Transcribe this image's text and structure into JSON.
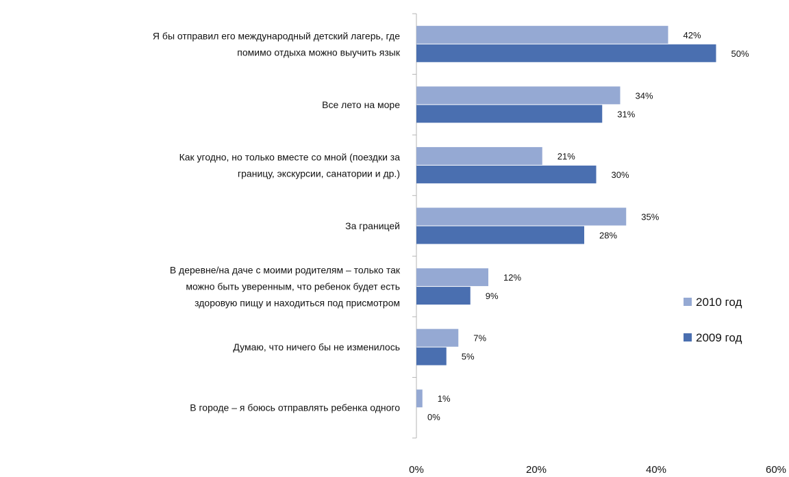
{
  "chart_data": {
    "type": "bar",
    "orientation": "horizontal",
    "categories": [
      [
        "Я бы отправил его международный детский лагерь, где",
        "помимо отдыха можно выучить язык"
      ],
      [
        "Все лето на море"
      ],
      [
        "Как угодно, но только вместе со мной (поездки за",
        "границу, экскурсии, санатории и др.)"
      ],
      [
        "За границей"
      ],
      [
        "В деревне/на даче с моими родителям – только так",
        "можно быть уверенным, что ребенок будет есть",
        "здоровую пищу и находиться под присмотром"
      ],
      [
        "Думаю, что ничего бы не изменилось"
      ],
      [
        "В городе – я боюсь отправлять ребенка одного"
      ]
    ],
    "series": [
      {
        "name": "2010 год",
        "color": "#95a9d3",
        "values": [
          42,
          34,
          21,
          35,
          12,
          7,
          1
        ],
        "labels": [
          "42%",
          "34%",
          "21%",
          "35%",
          "12%",
          "7%",
          "1%"
        ]
      },
      {
        "name": "2009 год",
        "color": "#4a6fb0",
        "values": [
          50,
          31,
          30,
          28,
          9,
          5,
          0
        ],
        "labels": [
          "50%",
          "31%",
          "30%",
          "28%",
          "9%",
          "5%",
          "0%"
        ]
      }
    ],
    "xlim": [
      0,
      60
    ],
    "xticks": [
      0,
      20,
      40,
      60
    ],
    "xtick_labels": [
      "0%",
      "20%",
      "40%",
      "60%"
    ],
    "grid": false,
    "legend_position": "right"
  }
}
